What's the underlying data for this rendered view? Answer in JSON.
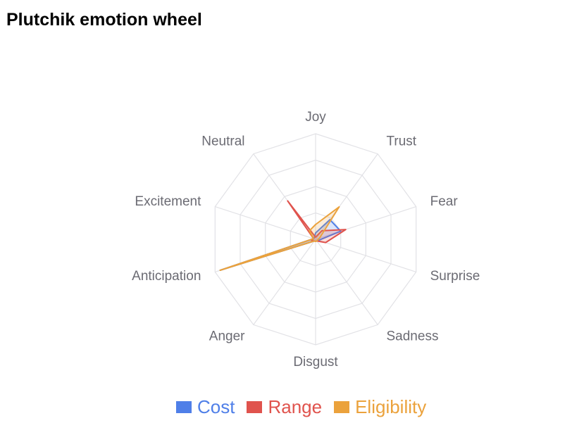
{
  "chart_data": {
    "type": "radar",
    "title": "Plutchik emotion wheel",
    "axes": [
      "Joy",
      "Trust",
      "Fear",
      "Surprise",
      "Sadness",
      "Disgust",
      "Anger",
      "Anticipation",
      "Excitement",
      "Neutral"
    ],
    "rlim": [
      0,
      100
    ],
    "grid_levels": 4,
    "grid": true,
    "legend_position": "bottom",
    "series": [
      {
        "name": "Cost",
        "color": "#4f7fe8",
        "values": [
          6,
          23,
          25,
          3,
          2,
          2,
          2,
          95,
          2,
          2
        ]
      },
      {
        "name": "Range",
        "color": "#e0534d",
        "values": [
          2,
          10,
          30,
          10,
          2,
          2,
          2,
          4,
          2,
          45
        ]
      },
      {
        "name": "Eligibility",
        "color": "#eba23c",
        "values": [
          14,
          38,
          4,
          2,
          2,
          2,
          2,
          95,
          2,
          10
        ]
      }
    ]
  }
}
